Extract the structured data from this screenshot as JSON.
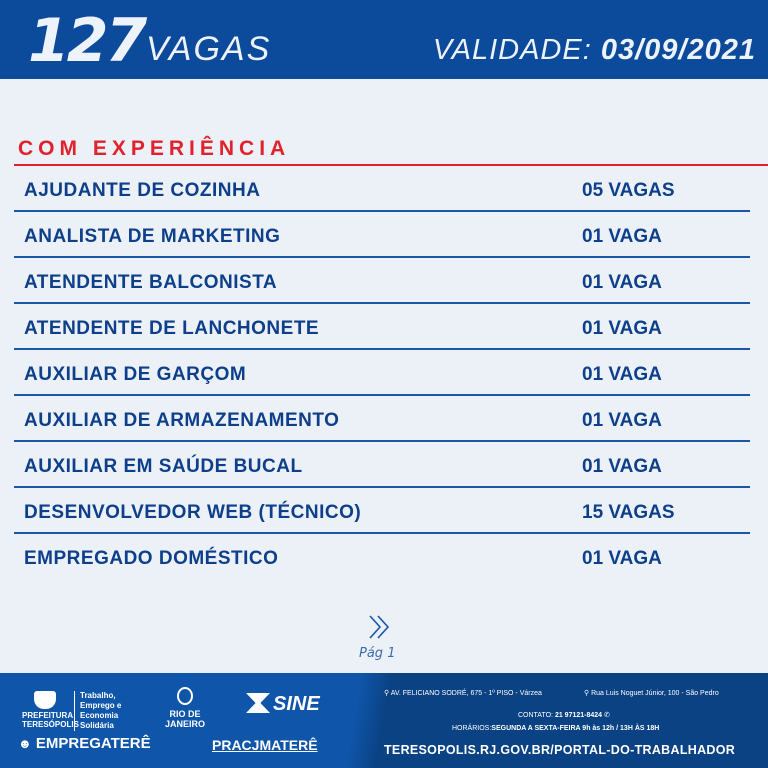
{
  "header": {
    "count": "127",
    "vagas_label": "VAGAS",
    "validade_label": "VALIDADE:",
    "validade_date": "03/09/2021"
  },
  "section_title": "COM EXPERIÊNCIA",
  "jobs": [
    {
      "title": "AJUDANTE DE COZINHA",
      "vagas": "05 VAGAS"
    },
    {
      "title": "ANALISTA DE MARKETING",
      "vagas": "01 VAGA"
    },
    {
      "title": "ATENDENTE BALCONISTA",
      "vagas": "01 VAGA"
    },
    {
      "title": "ATENDENTE DE LANCHONETE",
      "vagas": "01 VAGA"
    },
    {
      "title": "AUXILIAR DE GARÇOM",
      "vagas": "01 VAGA"
    },
    {
      "title": "AUXILIAR DE ARMAZENAMENTO",
      "vagas": "01 VAGA"
    },
    {
      "title": "AUXILIAR EM SAÚDE BUCAL",
      "vagas": "01 VAGA"
    },
    {
      "title": "DESENVOLVEDOR WEB (TÉCNICO)",
      "vagas": "15 VAGAS"
    },
    {
      "title": "EMPREGADO  DOMÉSTICO",
      "vagas": "01 VAGA"
    }
  ],
  "pager": {
    "next_icon": "double-chevron-right",
    "label": "Pág 1"
  },
  "footer": {
    "logos": {
      "prefeitura": "PREFEITURA TERESÓPOLIS",
      "secretaria": "Trabalho, Emprego e Economia Solidária",
      "rj": "RIO DE JANEIRO",
      "sine": "SINE",
      "empregatere": "EMPREGATERÊ",
      "pracamatere": "PRACJMATERÊ"
    },
    "address1": "AV. FELICIANO SODRÉ, 675 - 1º PISO - Várzea",
    "address2": "Rua Luis Noguet Júnior, 100 - São Pedro",
    "contato_label": "CONTATO:",
    "contato": "21 97121-8424",
    "horarios_label": "HORÁRIOS:",
    "horarios": "SEGUNDA A SEXTA-FEIRA  9h às 12h / 13H ÀS 18H",
    "url": "TERESOPOLIS.RJ.GOV.BR/PORTAL-DO-TRABALHADOR"
  }
}
